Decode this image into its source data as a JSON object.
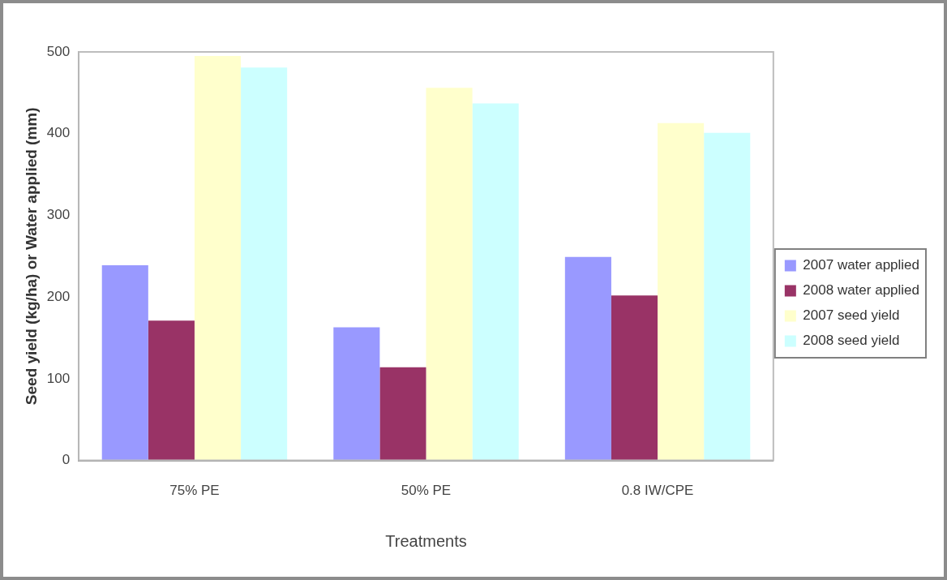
{
  "chart_data": {
    "type": "bar",
    "xlabel": "Treatments",
    "ylabel": "Seed yield (kg/ha) or Water applied (mm)",
    "categories": [
      "75% PE",
      "50% PE",
      "0.8 IW/CPE"
    ],
    "series": [
      {
        "name": "2007 water applied",
        "color": "#9999ff",
        "values": [
          239,
          163,
          249
        ]
      },
      {
        "name": "2008 water applied",
        "color": "#993366",
        "values": [
          171,
          114,
          202
        ]
      },
      {
        "name": "2007 seed yield",
        "color": "#ffffcc",
        "values": [
          495,
          456,
          413
        ]
      },
      {
        "name": "2008 seed yield",
        "color": "#ccffff",
        "values": [
          481,
          437,
          401
        ]
      }
    ],
    "ylim": [
      0,
      500
    ],
    "yticks": [
      0,
      100,
      200,
      300,
      400,
      500
    ],
    "grid": false,
    "legend": "right"
  }
}
